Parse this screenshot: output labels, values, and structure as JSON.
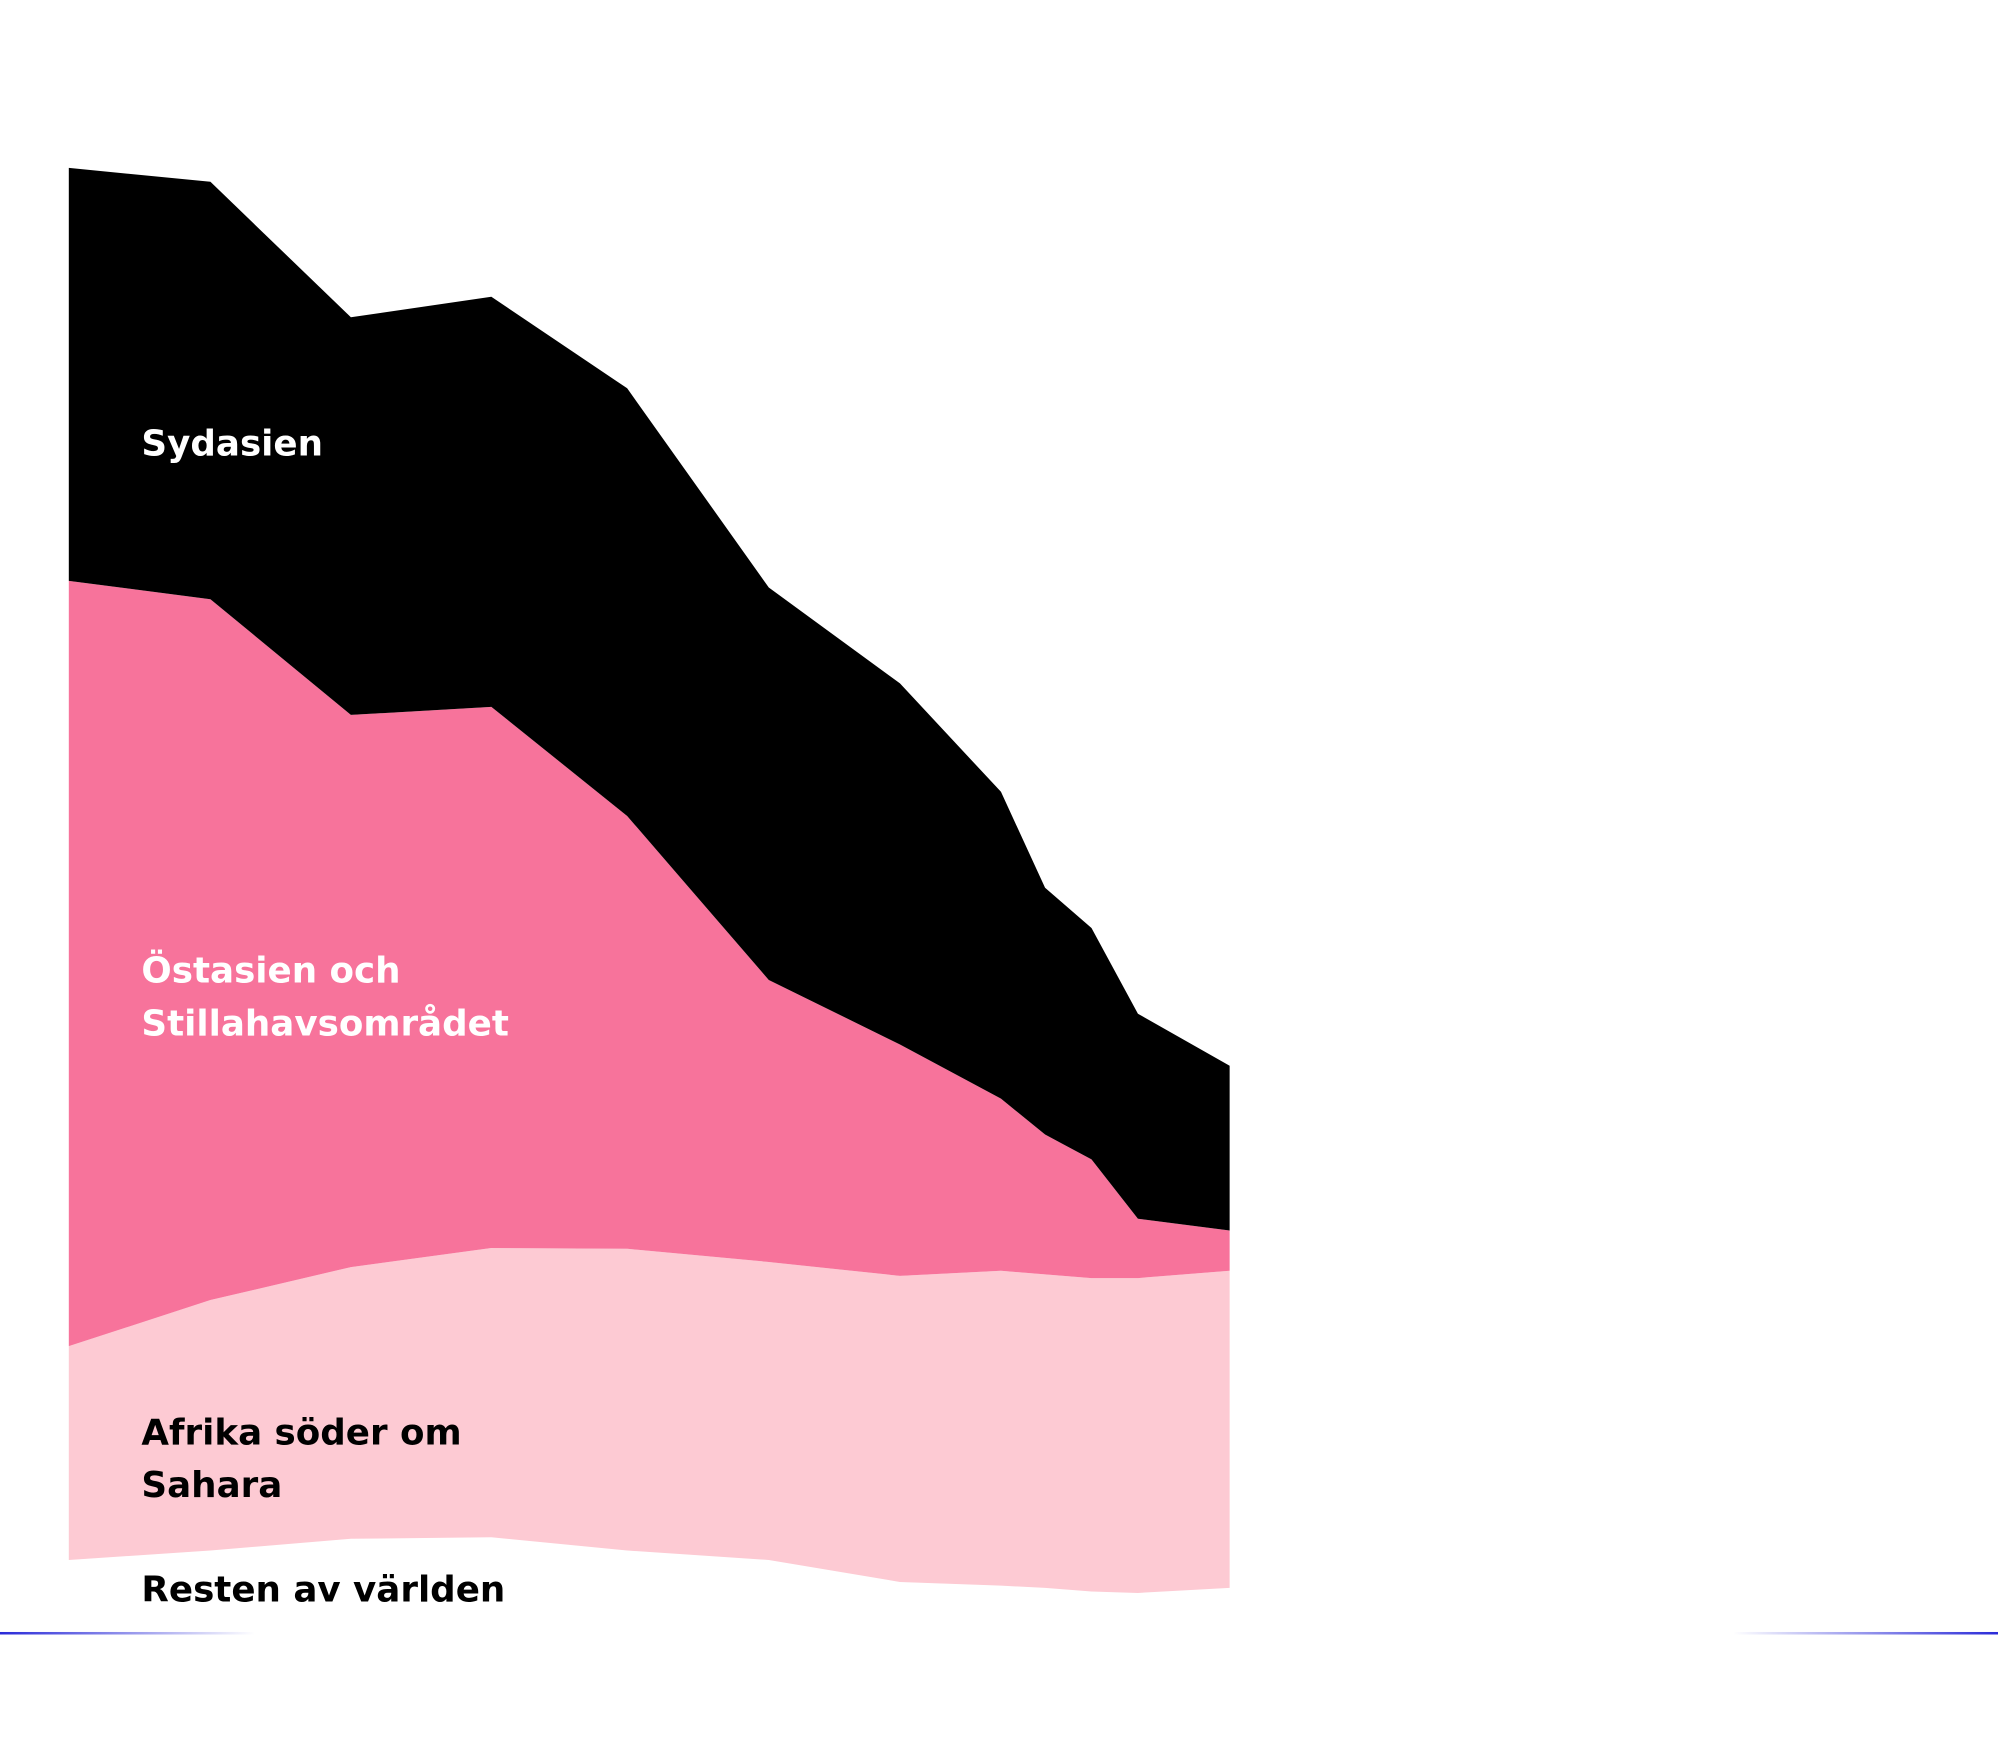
{
  "chart_data": {
    "type": "stacked-area",
    "x": [
      0,
      12.2,
      24.3,
      36.4,
      48.1,
      60.3,
      71.6,
      80.3,
      84.1,
      88.1,
      92.1,
      100
    ],
    "xlim": [
      0,
      100
    ],
    "ylim": [
      0,
      2000
    ],
    "series": [
      {
        "name": "Resten av världen",
        "color": "#ffffff",
        "values": [
          100,
          113,
          129,
          131,
          113,
          100,
          70,
          65,
          62,
          57,
          55,
          62
        ]
      },
      {
        "name": "Afrika söder om Sahara",
        "color": "#fdcad3",
        "values": [
          292,
          342,
          371,
          395,
          412,
          407,
          418,
          430,
          428,
          428,
          430,
          433
        ]
      },
      {
        "name": "Östasien och Stillahavsområdet",
        "color": "#f7739b",
        "values": [
          1045,
          957,
          754,
          739,
          591,
          385,
          316,
          235,
          191,
          162,
          81,
          55
        ]
      },
      {
        "name": "Sydasien",
        "color": "#000000",
        "values": [
          564,
          570,
          543,
          560,
          584,
          536,
          493,
          419,
          337,
          316,
          280,
          225
        ]
      }
    ]
  }
}
